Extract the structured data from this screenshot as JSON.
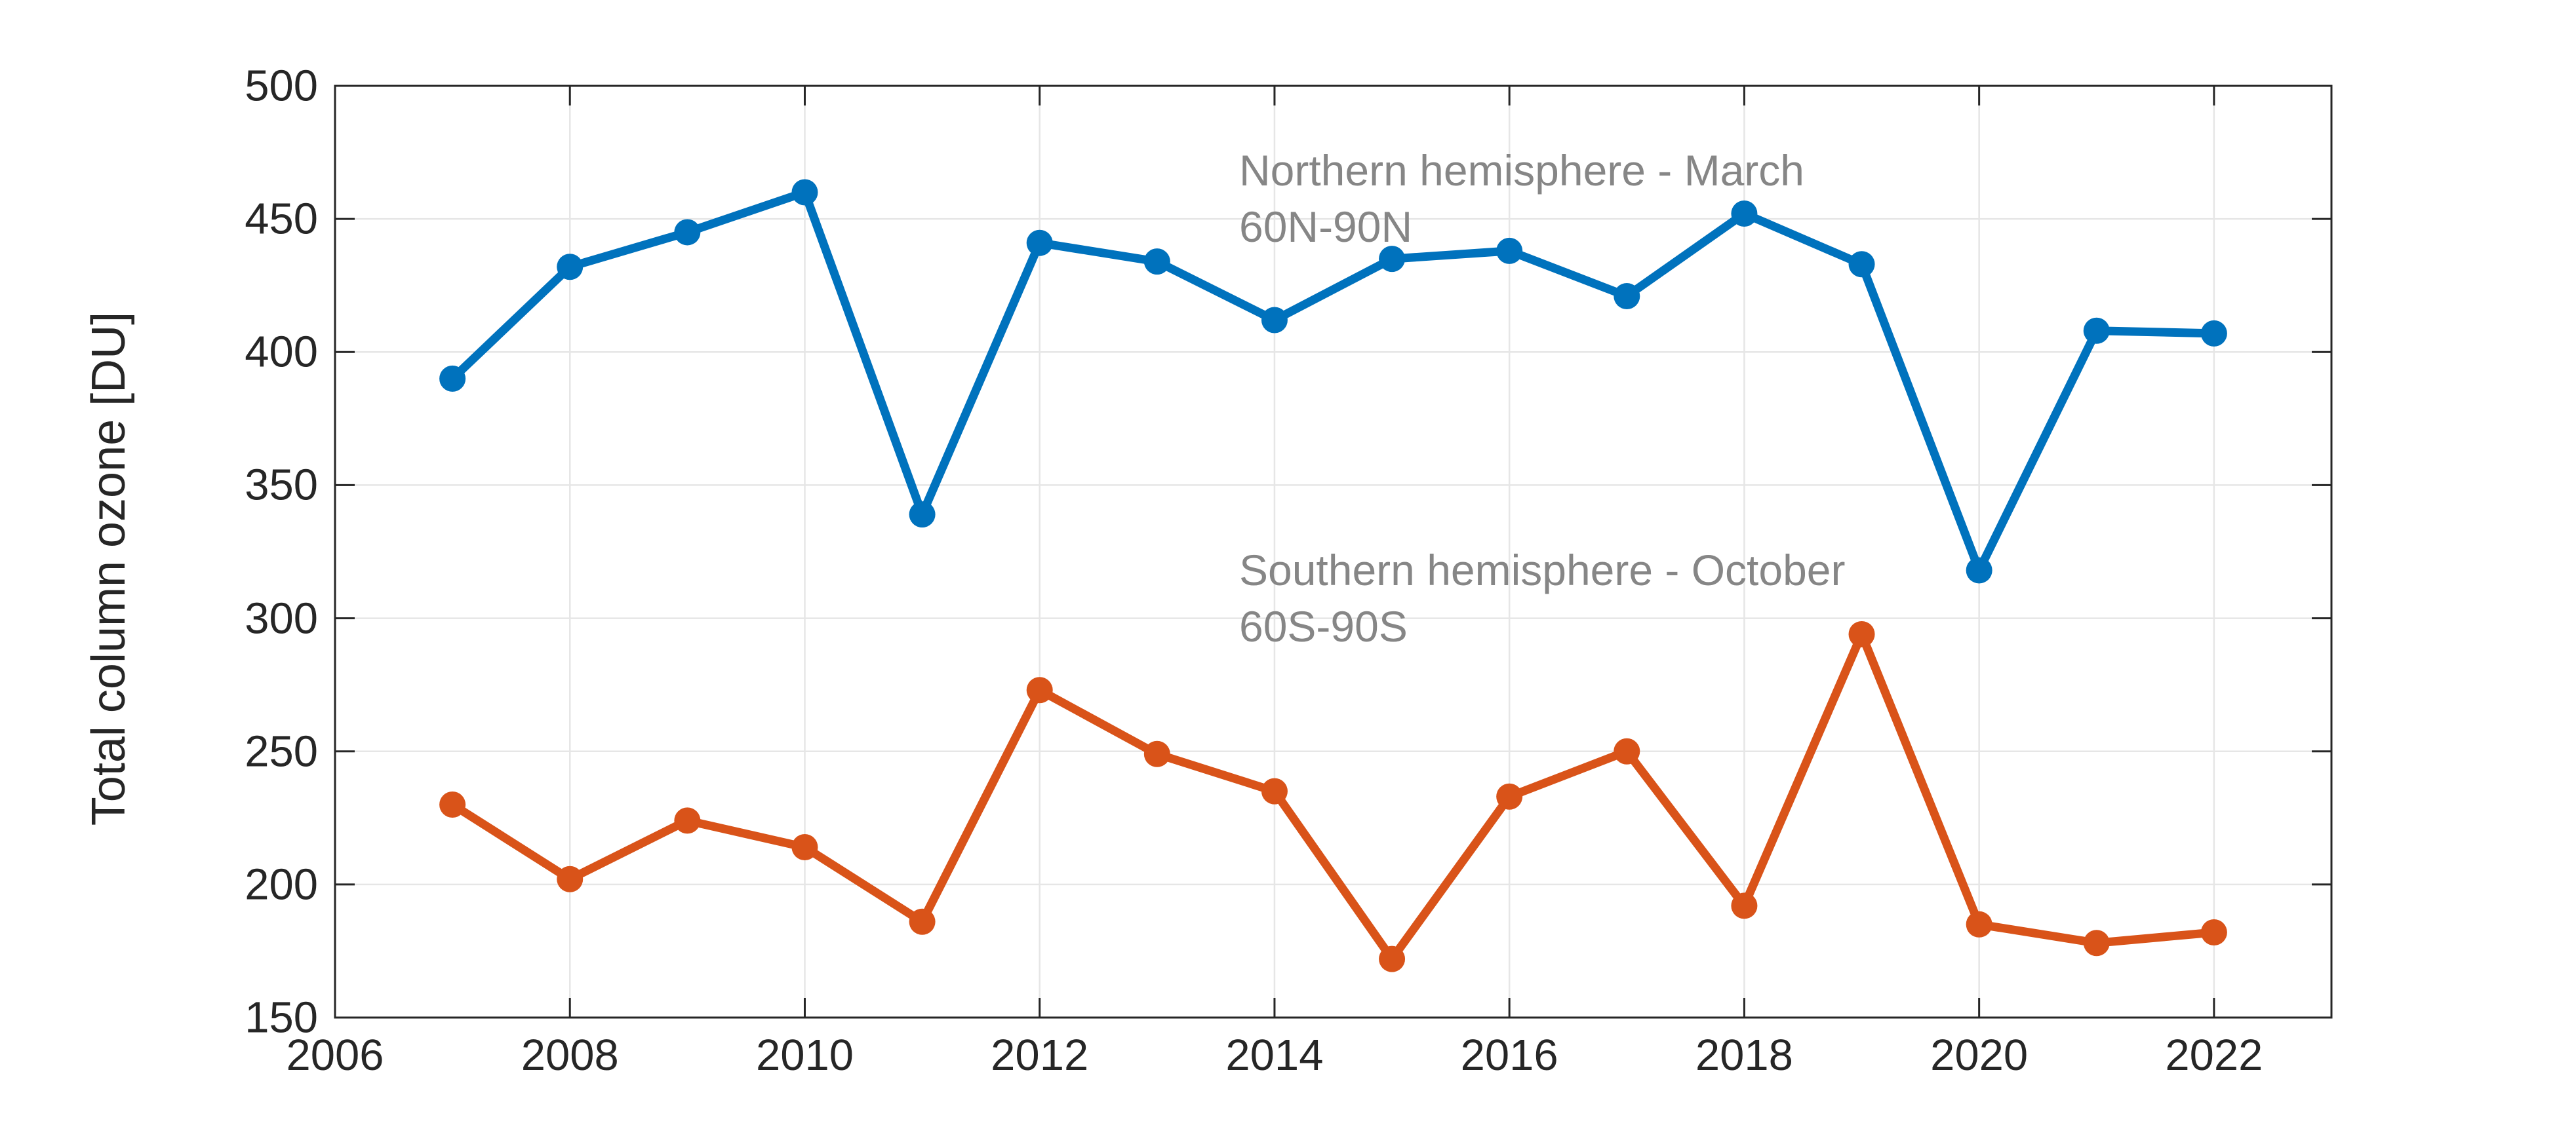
{
  "figure": {
    "background": "#FFFFFF"
  },
  "chart_data": {
    "type": "line",
    "title": "",
    "xlabel": "",
    "ylabel": "Total column ozone [DU]",
    "xlim": [
      2006,
      2023
    ],
    "ylim": [
      150,
      500
    ],
    "x_ticks": [
      2006,
      2008,
      2010,
      2012,
      2014,
      2016,
      2018,
      2020,
      2022
    ],
    "y_ticks": [
      150,
      200,
      250,
      300,
      350,
      400,
      450,
      500
    ],
    "grid": true,
    "legend_position": "none",
    "axis_color": "#262626",
    "grid_color": "#E6E6E6",
    "x": [
      2007,
      2008,
      2009,
      2010,
      2011,
      2012,
      2013,
      2014,
      2015,
      2016,
      2017,
      2018,
      2019,
      2020,
      2021,
      2022
    ],
    "series": [
      {
        "name": "Northern hemisphere - March 60N-90N",
        "color": "#0072BD",
        "values": [
          390,
          432,
          445,
          460,
          339,
          441,
          434,
          412,
          435,
          438,
          421,
          452,
          433,
          318,
          408,
          407
        ]
      },
      {
        "name": "Southern hemisphere - October 60S-90S",
        "color": "#D95319",
        "values": [
          230,
          202,
          224,
          214,
          186,
          273,
          249,
          235,
          172,
          233,
          250,
          192,
          294,
          185,
          178,
          182
        ]
      }
    ],
    "annotations": [
      {
        "line1": "Northern hemisphere - March",
        "line2": "60N-90N",
        "color": "#868686"
      },
      {
        "line1": "Southern hemisphere - October",
        "line2": "60S-90S",
        "color": "#868686"
      }
    ]
  }
}
